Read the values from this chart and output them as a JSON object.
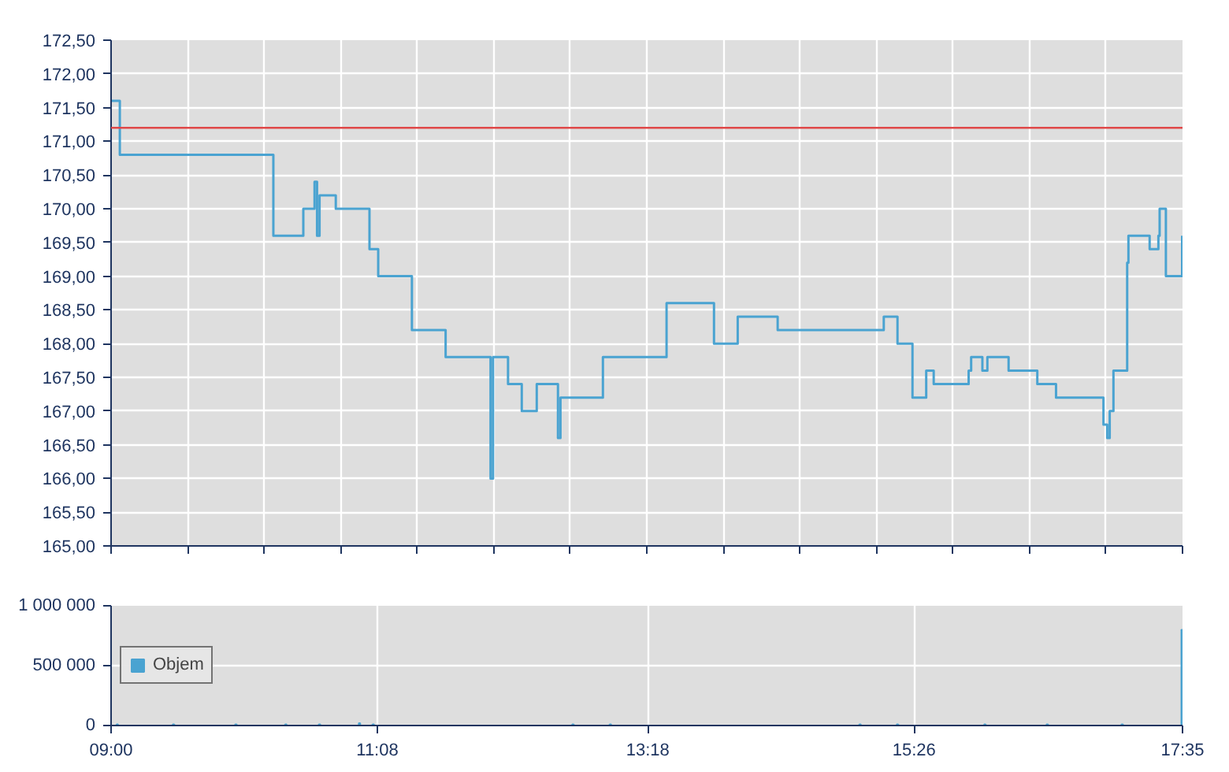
{
  "chart_data": [
    {
      "type": "step",
      "x": [
        9.0,
        9.07,
        10.3,
        10.54,
        10.63,
        10.65,
        10.67,
        10.8,
        11.07,
        11.14,
        11.41,
        11.68,
        12.04,
        12.06,
        12.1,
        12.18,
        12.29,
        12.41,
        12.58,
        12.6,
        12.94,
        13.45,
        13.83,
        14.02,
        14.34,
        15.19,
        15.3,
        15.42,
        15.53,
        15.59,
        15.87,
        15.89,
        15.98,
        16.02,
        16.19,
        16.42,
        16.57,
        16.95,
        16.98,
        17.0,
        17.03,
        17.14,
        17.15,
        17.32,
        17.39,
        17.4,
        17.45,
        17.58
      ],
      "series": [
        {
          "color": "#4aa3d1",
          "values": [
            171.6,
            170.8,
            169.6,
            170.0,
            170.4,
            169.6,
            170.2,
            170.0,
            169.4,
            169.0,
            168.2,
            167.8,
            166.0,
            167.8,
            167.8,
            167.4,
            167.0,
            167.4,
            166.6,
            167.2,
            167.8,
            168.6,
            168.0,
            168.4,
            168.2,
            168.4,
            168.0,
            167.2,
            167.6,
            167.4,
            167.6,
            167.8,
            167.6,
            167.8,
            167.6,
            167.4,
            167.2,
            166.8,
            166.6,
            167.0,
            167.6,
            169.2,
            169.6,
            169.4,
            169.6,
            170.0,
            169.0,
            169.6
          ]
        }
      ],
      "xlim": [
        9.0,
        17.5833
      ],
      "ylim": [
        165.0,
        172.5
      ],
      "xticks": [
        {
          "value": 9.0,
          "label": null
        },
        {
          "value": 9.6131,
          "label": null
        },
        {
          "value": 10.2262,
          "label": null
        },
        {
          "value": 10.8393,
          "label": null
        },
        {
          "value": 11.4524,
          "label": null
        },
        {
          "value": 12.0655,
          "label": null
        },
        {
          "value": 12.6786,
          "label": null
        },
        {
          "value": 13.2917,
          "label": null
        },
        {
          "value": 13.9048,
          "label": null
        },
        {
          "value": 14.5179,
          "label": null
        },
        {
          "value": 15.131,
          "label": null
        },
        {
          "value": 15.744,
          "label": null
        },
        {
          "value": 16.3571,
          "label": null
        },
        {
          "value": 16.9702,
          "label": null
        },
        {
          "value": 17.5833,
          "label": null
        }
      ],
      "yticks": [
        {
          "value": 165.0,
          "label": "165,00"
        },
        {
          "value": 165.5,
          "label": "165,50"
        },
        {
          "value": 166.0,
          "label": "166,00"
        },
        {
          "value": 166.5,
          "label": "166,50"
        },
        {
          "value": 167.0,
          "label": "167,00"
        },
        {
          "value": 167.5,
          "label": "167,50"
        },
        {
          "value": 168.0,
          "label": "168,00"
        },
        {
          "value": 168.5,
          "label": "168,50"
        },
        {
          "value": 169.0,
          "label": "169,00"
        },
        {
          "value": 169.5,
          "label": "169,50"
        },
        {
          "value": 170.0,
          "label": "170,00"
        },
        {
          "value": 170.5,
          "label": "170,50"
        },
        {
          "value": 171.0,
          "label": "171,00"
        },
        {
          "value": 171.5,
          "label": "171,50"
        },
        {
          "value": 172.0,
          "label": "172,00"
        },
        {
          "value": 172.5,
          "label": "172,50"
        }
      ],
      "ref_lines": [
        {
          "axis": "y",
          "value": 171.2,
          "color": "#e04848"
        }
      ],
      "grid": true,
      "tick_labels": "y",
      "legend": false
    },
    {
      "type": "bar",
      "x": [
        9.05,
        9.5,
        10.0,
        10.4,
        10.67,
        10.99,
        11.1,
        12.7,
        13.0,
        15.0,
        15.3,
        16.0,
        16.5,
        17.1,
        17.58
      ],
      "series": [
        {
          "name": "Objem",
          "color": "#4aa3d1",
          "values": [
            10000,
            10000,
            10000,
            10000,
            10000,
            20000,
            10000,
            10000,
            10000,
            10000,
            10000,
            10000,
            10000,
            10000,
            800000
          ]
        }
      ],
      "xlim": [
        9.0,
        17.5833
      ],
      "ylim": [
        0,
        1000000
      ],
      "xticks": [
        {
          "value": 9.0,
          "label": "09:00"
        },
        {
          "value": 11.1333,
          "label": "11:08"
        },
        {
          "value": 13.3,
          "label": "13:18"
        },
        {
          "value": 15.4333,
          "label": "15:26"
        },
        {
          "value": 17.5833,
          "label": "17:35"
        }
      ],
      "yticks": [
        {
          "value": 0,
          "label": "0"
        },
        {
          "value": 500000,
          "label": "500 000"
        },
        {
          "value": 1000000,
          "label": "1 000 000"
        }
      ],
      "grid": true,
      "legend": "left"
    }
  ]
}
